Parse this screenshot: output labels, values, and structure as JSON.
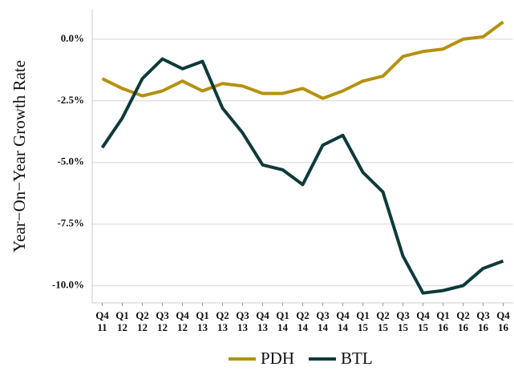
{
  "chart_data": {
    "type": "line",
    "y_label": "Year−On−Year Growth Rate",
    "categories": [
      "Q4 11",
      "Q1 12",
      "Q2 12",
      "Q3 12",
      "Q4 12",
      "Q1 13",
      "Q2 13",
      "Q3 13",
      "Q4 13",
      "Q1 14",
      "Q2 14",
      "Q3 14",
      "Q4 14",
      "Q1 15",
      "Q2 15",
      "Q3 15",
      "Q4 15",
      "Q1 16",
      "Q2 16",
      "Q3 16",
      "Q4 16"
    ],
    "series": [
      {
        "name": "PDH",
        "color": "#b5910f",
        "values": [
          -1.6,
          -2.0,
          -2.3,
          -2.1,
          -1.7,
          -2.1,
          -1.8,
          -1.9,
          -2.2,
          -2.2,
          -2.0,
          -2.4,
          -2.1,
          -1.7,
          -1.5,
          -0.7,
          -0.5,
          -0.4,
          0.0,
          0.1,
          0.7
        ]
      },
      {
        "name": "BTL",
        "color": "#0e3a3a",
        "values": [
          -4.4,
          -3.2,
          -1.6,
          -0.8,
          -1.2,
          -0.9,
          -2.8,
          -3.8,
          -5.1,
          -5.3,
          -5.9,
          -4.3,
          -3.9,
          -5.4,
          -6.2,
          -8.8,
          -10.3,
          -10.2,
          -10.0,
          -9.3,
          -9.0
        ]
      }
    ],
    "ylim": [
      -10.7,
      1.2
    ],
    "yticks": [
      {
        "value": 0,
        "label": "0.0%"
      },
      {
        "value": -2.5,
        "label": "-2.5%"
      },
      {
        "value": -5,
        "label": "-5.0%"
      },
      {
        "value": -7.5,
        "label": "-7.5%"
      },
      {
        "value": -10,
        "label": "-10.0%"
      }
    ],
    "grid": true,
    "legend": "bottom"
  }
}
